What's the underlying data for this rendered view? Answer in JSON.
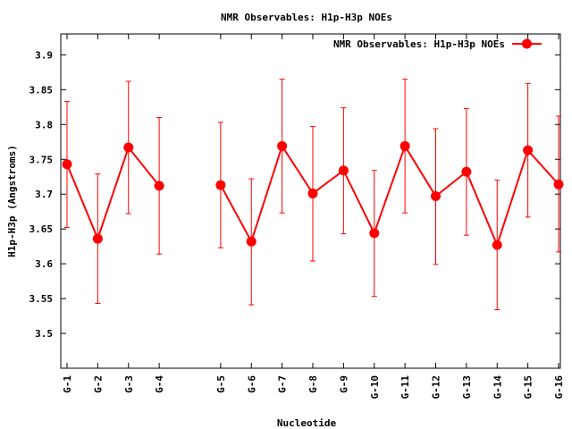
{
  "chart_data": {
    "type": "line",
    "title": "NMR Observables: H1p-H3p NOEs",
    "xlabel": "Nucleotide",
    "ylabel": "H1p-H3p (Angstroms)",
    "ylim": [
      3.45,
      3.93
    ],
    "yticks": [
      3.5,
      3.55,
      3.6,
      3.65,
      3.7,
      3.75,
      3.8,
      3.85,
      3.9
    ],
    "ytick_labels": [
      "3.5",
      "3.55",
      "3.6",
      "3.65",
      "3.7",
      "3.75",
      "3.8",
      "3.85",
      "3.9"
    ],
    "grid": false,
    "legend_position": "top-right",
    "color": "#ff0000",
    "series": [
      {
        "name": "NMR Observables: H1p-H3p NOEs",
        "points": [
          {
            "x": 1,
            "label": "G-1",
            "y": 3.743,
            "lo": 3.652,
            "hi": 3.833
          },
          {
            "x": 2,
            "label": "G-2",
            "y": 3.636,
            "lo": 3.543,
            "hi": 3.729
          },
          {
            "x": 3,
            "label": "G-3",
            "y": 3.767,
            "lo": 3.672,
            "hi": 3.862
          },
          {
            "x": 4,
            "label": "G-4",
            "y": 3.712,
            "lo": 3.614,
            "hi": 3.81
          },
          {
            "x": 6,
            "label": "G-5",
            "y": 3.713,
            "lo": 3.623,
            "hi": 3.803
          },
          {
            "x": 7,
            "label": "G-6",
            "y": 3.632,
            "lo": 3.541,
            "hi": 3.722
          },
          {
            "x": 8,
            "label": "G-7",
            "y": 3.769,
            "lo": 3.673,
            "hi": 3.865
          },
          {
            "x": 9,
            "label": "G-8",
            "y": 3.701,
            "lo": 3.604,
            "hi": 3.797
          },
          {
            "x": 10,
            "label": "G-9",
            "y": 3.734,
            "lo": 3.643,
            "hi": 3.824
          },
          {
            "x": 11,
            "label": "G-10",
            "y": 3.644,
            "lo": 3.553,
            "hi": 3.734
          },
          {
            "x": 12,
            "label": "G-11",
            "y": 3.769,
            "lo": 3.673,
            "hi": 3.865
          },
          {
            "x": 13,
            "label": "G-12",
            "y": 3.697,
            "lo": 3.599,
            "hi": 3.794
          },
          {
            "x": 14,
            "label": "G-13",
            "y": 3.732,
            "lo": 3.641,
            "hi": 3.823
          },
          {
            "x": 15,
            "label": "G-14",
            "y": 3.627,
            "lo": 3.534,
            "hi": 3.72
          },
          {
            "x": 16,
            "label": "G-15",
            "y": 3.763,
            "lo": 3.667,
            "hi": 3.859
          },
          {
            "x": 17,
            "label": "G-16",
            "y": 3.714,
            "lo": 3.617,
            "hi": 3.812
          }
        ]
      }
    ]
  }
}
